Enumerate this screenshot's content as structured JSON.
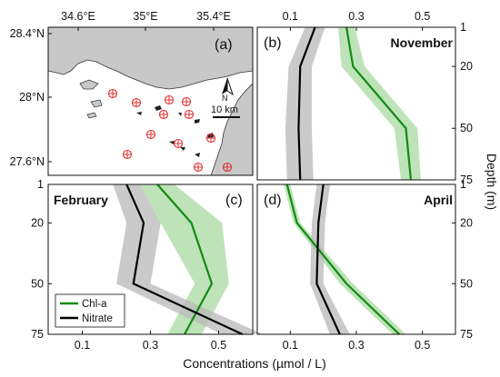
{
  "colors": {
    "chl": "#138a13",
    "chl_band": "#a8d9a0",
    "nitrate": "#000000",
    "nitrate_band": "#b8b8b8",
    "land": "#c8c8c8",
    "station": "#e03030"
  },
  "map": {
    "letter": "(a)",
    "lon_ticks": [
      "34.6°E",
      "35°E",
      "35.4°E"
    ],
    "lat_ticks": [
      "28.4°N",
      "28°N",
      "27.6°N"
    ],
    "scale_label": "10 km",
    "north_label": "N",
    "station_count": 12
  },
  "legend": {
    "chl": "Chl-a",
    "nitrate": "Nitrate"
  },
  "x_axis_title": "Concentrations (µmol / L)",
  "y_axis_title": "Depth (m)",
  "chart_data": [
    {
      "type": "line",
      "panel": "(b)",
      "title": "November",
      "xlim": [
        0,
        0.6
      ],
      "ylim": [
        75,
        1
      ],
      "x_ticks": [
        "0.1",
        "0.3",
        "0.5"
      ],
      "y_ticks": [
        "1",
        "20",
        "50",
        "75"
      ],
      "series": [
        {
          "name": "Chl-a",
          "depth": [
            1,
            20,
            50,
            75
          ],
          "values": [
            0.27,
            0.29,
            0.45,
            0.465
          ],
          "err": [
            0.025,
            0.035,
            0.035,
            0.03
          ]
        },
        {
          "name": "Nitrate",
          "depth": [
            1,
            20,
            50,
            75
          ],
          "values": [
            0.175,
            0.13,
            0.125,
            0.13
          ],
          "err": [
            0.03,
            0.035,
            0.04,
            0.04
          ]
        }
      ]
    },
    {
      "type": "line",
      "panel": "(c)",
      "title": "February",
      "xlim": [
        0,
        0.6
      ],
      "ylim": [
        75,
        1
      ],
      "x_ticks": [
        "0.1",
        "0.3",
        "0.5"
      ],
      "y_ticks": [
        "1",
        "20",
        "50",
        "75"
      ],
      "series": [
        {
          "name": "Chl-a",
          "depth": [
            1,
            20,
            50,
            75
          ],
          "values": [
            0.32,
            0.42,
            0.48,
            0.4
          ],
          "err": [
            0.05,
            0.09,
            0.05,
            0.05
          ]
        },
        {
          "name": "Nitrate",
          "depth": [
            1,
            20,
            50,
            75
          ],
          "values": [
            0.23,
            0.28,
            0.25,
            0.57
          ],
          "err": [
            0.04,
            0.05,
            0.05,
            0.06
          ]
        }
      ]
    },
    {
      "type": "line",
      "panel": "(d)",
      "title": "April",
      "xlim": [
        0,
        0.6
      ],
      "ylim": [
        75,
        1
      ],
      "x_ticks": [
        "0.1",
        "0.3",
        "0.5"
      ],
      "y_ticks": [
        "1",
        "20",
        "50",
        "75"
      ],
      "series": [
        {
          "name": "Chl-a",
          "depth": [
            1,
            20,
            50,
            75
          ],
          "values": [
            0.09,
            0.12,
            0.27,
            0.43
          ],
          "err": [
            0.01,
            0.01,
            0.02,
            0.02
          ]
        },
        {
          "name": "Nitrate",
          "depth": [
            1,
            20,
            50,
            75
          ],
          "values": [
            0.2,
            0.185,
            0.18,
            0.25
          ],
          "err": [
            0.02,
            0.02,
            0.02,
            0.03
          ]
        }
      ]
    }
  ]
}
